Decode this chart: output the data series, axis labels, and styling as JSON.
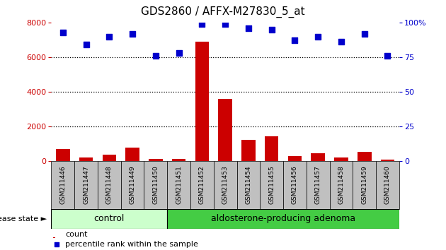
{
  "title": "GDS2860 / AFFX-M27830_5_at",
  "samples": [
    "GSM211446",
    "GSM211447",
    "GSM211448",
    "GSM211449",
    "GSM211450",
    "GSM211451",
    "GSM211452",
    "GSM211453",
    "GSM211454",
    "GSM211455",
    "GSM211456",
    "GSM211457",
    "GSM211458",
    "GSM211459",
    "GSM211460"
  ],
  "counts": [
    700,
    200,
    400,
    800,
    120,
    130,
    6900,
    3600,
    1250,
    1450,
    280,
    450,
    220,
    550,
    100
  ],
  "percentiles": [
    93,
    84,
    90,
    92,
    76,
    78,
    99,
    99,
    96,
    95,
    87,
    90,
    86,
    92,
    76
  ],
  "ylim_left": [
    0,
    8000
  ],
  "ylim_right": [
    0,
    100
  ],
  "yticks_left": [
    0,
    2000,
    4000,
    6000,
    8000
  ],
  "yticks_right": [
    0,
    25,
    50,
    75,
    100
  ],
  "control_count": 5,
  "adenoma_count": 10,
  "control_label": "control",
  "adenoma_label": "aldosterone-producing adenoma",
  "disease_state_label": "disease state",
  "legend_count_label": "count",
  "legend_percentile_label": "percentile rank within the sample",
  "bar_color": "#cc0000",
  "dot_color": "#0000cc",
  "control_bg": "#ccffcc",
  "adenoma_bg": "#44cc44",
  "label_bg": "#c0c0c0",
  "left_axis_color": "#cc0000",
  "right_axis_color": "#0000cc"
}
